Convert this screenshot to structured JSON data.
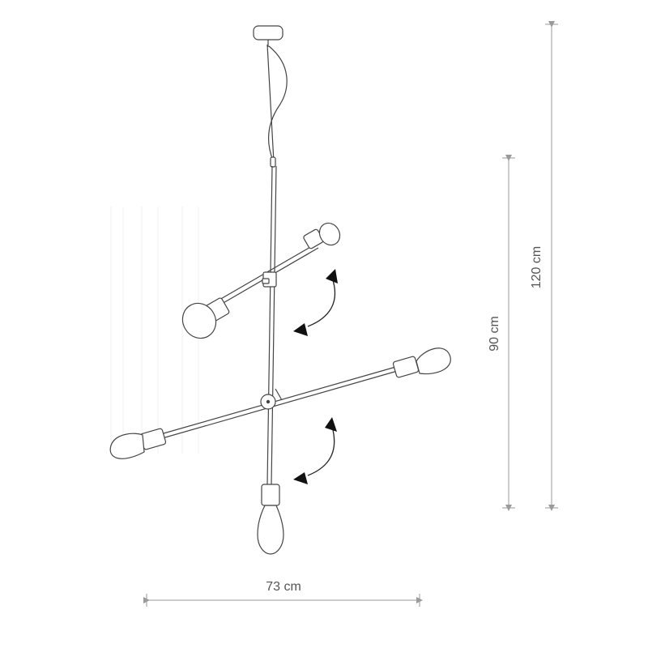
{
  "dimensions": {
    "width_label": "73 cm",
    "height_body_label": "90 cm",
    "height_total_label": "120 cm"
  }
}
